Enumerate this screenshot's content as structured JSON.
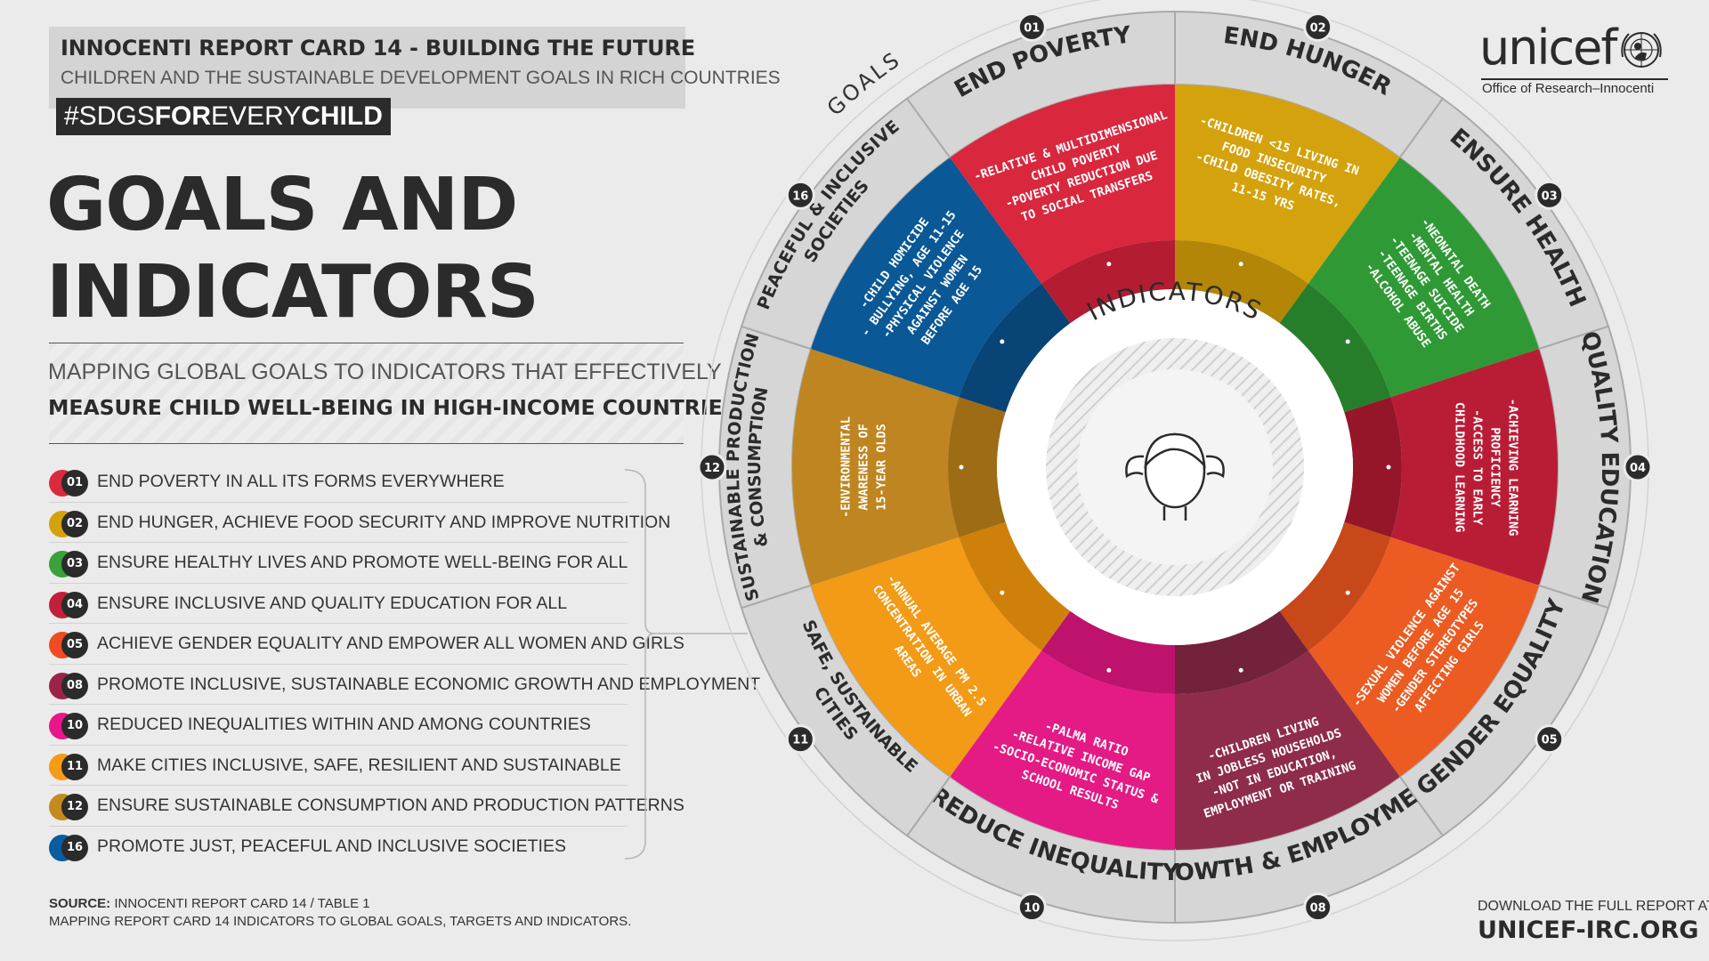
{
  "header": {
    "title_bold": "INNOCENTI REPORT CARD 14",
    "title_rest": " - BUILDING THE FUTURE",
    "subtitle": "CHILDREN AND THE SUSTAINABLE DEVELOPMENT GOALS IN RICH COUNTRIES",
    "hashtag_1": "#SDGS",
    "hashtag_2": "FOR",
    "hashtag_3": "EVERY",
    "hashtag_4": "CHILD"
  },
  "main_title": {
    "line1": "GOALS AND",
    "line2": "INDICATORS"
  },
  "mapping": {
    "line1": "MAPPING GLOBAL GOALS TO INDICATORS THAT EFFECTIVELY",
    "line2": "MEASURE CHILD WELL-BEING IN HIGH-INCOME COUNTRIES"
  },
  "goal_list": [
    {
      "num": "01",
      "text": "END POVERTY IN ALL ITS FORMS EVERYWHERE",
      "color": "#dc2a3d"
    },
    {
      "num": "02",
      "text": "END HUNGER, ACHIEVE FOOD SECURITY AND IMPROVE NUTRITION",
      "color": "#d4a20c"
    },
    {
      "num": "03",
      "text": "ENSURE HEALTHY LIVES AND PROMOTE WELL-BEING FOR ALL",
      "color": "#3aa13c"
    },
    {
      "num": "04",
      "text": "ENSURE INCLUSIVE AND QUALITY EDUCATION FOR ALL",
      "color": "#c1203a"
    },
    {
      "num": "05",
      "text": "ACHIEVE GENDER EQUALITY AND EMPOWER ALL WOMEN AND GIRLS",
      "color": "#ef4b24"
    },
    {
      "num": "08",
      "text": "PROMOTE INCLUSIVE, SUSTAINABLE ECONOMIC GROWTH AND EMPLOYMENT",
      "color": "#9c2348"
    },
    {
      "num": "10",
      "text": "REDUCED INEQUALITIES WITHIN AND AMONG COUNTRIES",
      "color": "#e8168a"
    },
    {
      "num": "11",
      "text": "MAKE CITIES INCLUSIVE, SAFE, RESILIENT AND SUSTAINABLE",
      "color": "#f59c16"
    },
    {
      "num": "12",
      "text": "ENSURE SUSTAINABLE CONSUMPTION AND PRODUCTION PATTERNS",
      "color": "#c38a1e"
    },
    {
      "num": "16",
      "text": "PROMOTE JUST, PEACEFUL AND INCLUSIVE SOCIETIES",
      "color": "#0a5ca0"
    }
  ],
  "source": {
    "label": "SOURCE:",
    "line1": " INNOCENTI REPORT CARD 14 / TABLE 1",
    "line2": "MAPPING REPORT CARD 14 INDICATORS TO GLOBAL GOALS, TARGETS AND INDICATORS."
  },
  "logo": {
    "wordmark": "unicef",
    "subtitle": "Office of Research–Innocenti"
  },
  "download": {
    "line1": "DOWNLOAD THE FULL REPORT AT",
    "url": "UNICEF-IRC.ORG"
  },
  "wheel": {
    "goals_label": "GOALS",
    "indicators_label": "INDICATORS",
    "segments": [
      {
        "num": "02",
        "name": [
          "END HUNGER"
        ],
        "color": "#d4a20c",
        "dark": "#b38607",
        "indicators": [
          "-CHILDREN <15 LIVING IN",
          "FOOD INSECURITY",
          "-CHILD OBESITY RATES,",
          "11-15 YRS"
        ]
      },
      {
        "num": "03",
        "name": [
          "ENSURE HEALTH"
        ],
        "color": "#2f9a35",
        "dark": "#267e2b",
        "indicators": [
          "-NEONATAL DEATH",
          "-MENTAL HEALTH",
          "-TEENAGE SUICIDE",
          "-TEENAGE BIRTHS",
          "-ALCOHOL ABUSE"
        ]
      },
      {
        "num": "04",
        "name": [
          "QUALITY EDUCATION"
        ],
        "color": "#b91d36",
        "dark": "#961629",
        "indicators": [
          "-ACHIEVING LEARNING",
          "PROFICIENCY",
          "-ACCESS TO EARLY",
          "CHILDHOOD LEARNING"
        ]
      },
      {
        "num": "05",
        "name": [
          "GENDER EQUALITY"
        ],
        "color": "#ec5b22",
        "dark": "#c8481a",
        "indicators": [
          "-SEXUAL VIOLENCE AGAINST",
          "WOMEN BEFORE AGE 15",
          "-GENDER STEREOTYPES",
          "AFFECTING GIRLS"
        ]
      },
      {
        "num": "08",
        "name": [
          "GROWTH & EMPLOYMENT"
        ],
        "color": "#8e2c4a",
        "dark": "#73223b",
        "indicators": [
          "-CHILDREN LIVING",
          "IN JOBLESS HOUSEHOLDS",
          "-NOT IN EDUCATION,",
          "EMPLOYMENT OR TRAINING"
        ]
      },
      {
        "num": "10",
        "name": [
          "REDUCE INEQUALITY"
        ],
        "color": "#e41a85",
        "dark": "#bf126c",
        "indicators": [
          "-PALMA RATIO",
          "-RELATIVE INCOME GAP",
          "-SOCIO-ECONOMIC STATUS &",
          "SCHOOL RESULTS"
        ]
      },
      {
        "num": "11",
        "name": [
          "SAFE, SUSTAINABLE",
          "CITIES"
        ],
        "color": "#f39a16",
        "dark": "#cf800b",
        "indicators": [
          "-ANNUAL AVERAGE PM 2.5",
          "CONCENTRATION IN URBAN",
          "AREAS"
        ]
      },
      {
        "num": "12",
        "name": [
          "SUSTAINABLE PRODUCTION",
          "& CONSUMPTION"
        ],
        "color": "#bf8520",
        "dark": "#9e6c14",
        "indicators": [
          "-ENVIRONMENTAL",
          "AWARENESS OF",
          "15-YEAR OLDS"
        ]
      },
      {
        "num": "16",
        "name": [
          "PEACEFUL & INCLUSIVE",
          "SOCIETIES"
        ],
        "color": "#0a5896",
        "dark": "#084476",
        "indicators": [
          "-CHILD HOMICIDE",
          "- BULLYING, AGE 11-15",
          "-PHYSICAL VIOLENCE",
          "AGAINST WOMEN",
          "BEFORE AGE 15"
        ]
      },
      {
        "num": "01",
        "name": [
          "END POVERTY"
        ],
        "color": "#d9273e",
        "dark": "#b31c31",
        "indicators": [
          "-RELATIVE & MULTIDIMENSIONAL",
          "CHILD POVERTY",
          "-POVERTY REDUCTION DUE",
          "TO SOCIAL TRANSFERS"
        ]
      }
    ]
  }
}
